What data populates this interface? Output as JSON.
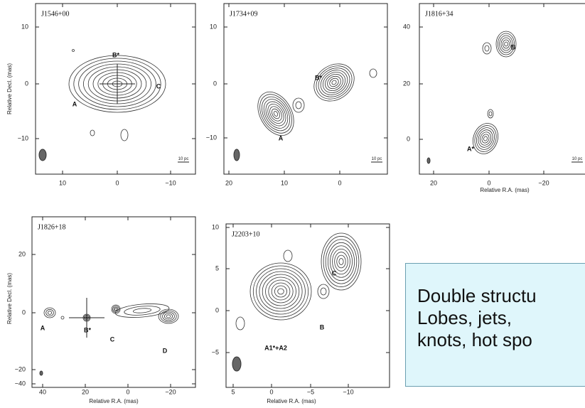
{
  "panels": [
    {
      "title": "J1546+00",
      "x_ticks": [
        "10",
        "0",
        "−10"
      ],
      "y_ticks": [
        "10",
        "0",
        "−10"
      ],
      "y_label": "Relative Decl. (mas)",
      "components": [
        "A",
        "B*",
        "C"
      ],
      "scale": "10 pc"
    },
    {
      "title": "J1734+09",
      "x_ticks": [
        "20",
        "10",
        "0"
      ],
      "y_ticks": [
        "10",
        "0",
        "−10"
      ],
      "components": [
        "B*",
        "A"
      ],
      "scale": "10 pc"
    },
    {
      "title": "J1816+34",
      "x_ticks": [
        "20",
        "0",
        "−20"
      ],
      "y_ticks": [
        "40",
        "20",
        "0"
      ],
      "x_label": "Relative R.A. (mas)",
      "components": [
        "B",
        "A*"
      ],
      "scale": "10 pc"
    },
    {
      "title": "J1826+18",
      "x_ticks": [
        "40",
        "20",
        "0",
        "−20"
      ],
      "y_ticks": [
        "20",
        "0",
        "−20",
        "−40"
      ],
      "x_label": "Relative R.A. (mas)",
      "y_label": "Relative Decl. (mas)",
      "components": [
        "A",
        "B*",
        "C",
        "D"
      ]
    },
    {
      "title": "J2203+10",
      "x_ticks": [
        "5",
        "0",
        "−5",
        "−10"
      ],
      "y_ticks": [
        "10",
        "5",
        "0",
        "−5"
      ],
      "x_label": "Relative R.A. (mas)",
      "components": [
        "C",
        "B",
        "A1*+A2"
      ]
    }
  ],
  "text_box": {
    "lines": [
      "Double structu",
      "Lobes, jets,",
      "knots, hot spo"
    ]
  }
}
